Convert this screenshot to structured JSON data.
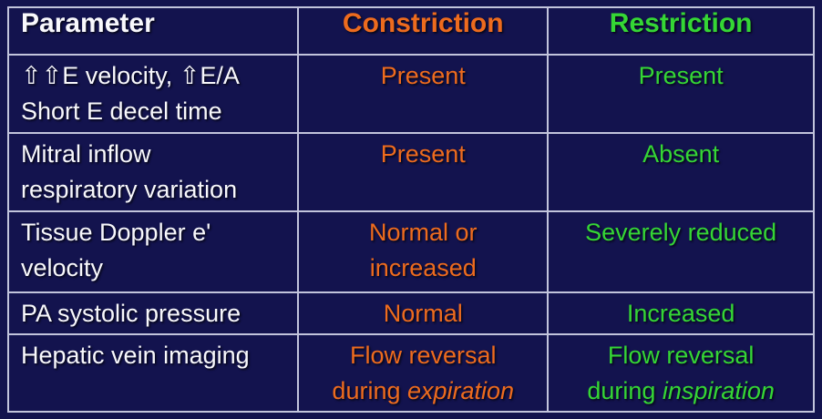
{
  "slide": {
    "colors": {
      "background": "#13134E",
      "grid": "#C2C4DC",
      "parameter_text": "#F8F8FC",
      "constriction_text": "#ED6B1E",
      "restriction_text": "#35D635"
    },
    "table": {
      "headers": [
        {
          "id": "parameter",
          "label": "Parameter"
        },
        {
          "id": "constriction",
          "label": "Constriction"
        },
        {
          "id": "restriction",
          "label": "Restriction"
        }
      ],
      "rows": [
        {
          "parameter": {
            "lines": [
              [
                {
                  "t": "⇧⇧E velocity, ⇧E/A"
                }
              ],
              [
                {
                  "t": "Short E decel time"
                }
              ]
            ]
          },
          "constriction": {
            "lines": [
              [
                {
                  "t": "Present"
                }
              ]
            ]
          },
          "restriction": {
            "lines": [
              [
                {
                  "t": "Present"
                }
              ]
            ]
          }
        },
        {
          "parameter": {
            "lines": [
              [
                {
                  "t": "Mitral inflow"
                }
              ],
              [
                {
                  "t": "respiratory variation"
                }
              ]
            ]
          },
          "constriction": {
            "lines": [
              [
                {
                  "t": "Present"
                }
              ]
            ]
          },
          "restriction": {
            "lines": [
              [
                {
                  "t": "Absent"
                }
              ]
            ]
          }
        },
        {
          "parameter": {
            "lines": [
              [
                {
                  "t": "Tissue Doppler e'"
                }
              ],
              [
                {
                  "t": "velocity"
                }
              ]
            ]
          },
          "constriction": {
            "lines": [
              [
                {
                  "t": "Normal or"
                }
              ],
              [
                {
                  "t": "increased"
                }
              ]
            ]
          },
          "restriction": {
            "lines": [
              [
                {
                  "t": "Severely reduced"
                }
              ]
            ]
          }
        },
        {
          "parameter": {
            "lines": [
              [
                {
                  "t": "PA systolic pressure"
                }
              ]
            ]
          },
          "constriction": {
            "lines": [
              [
                {
                  "t": "Normal"
                }
              ]
            ]
          },
          "restriction": {
            "lines": [
              [
                {
                  "t": "Increased"
                }
              ]
            ]
          }
        },
        {
          "parameter": {
            "lines": [
              [
                {
                  "t": "Hepatic vein imaging"
                }
              ]
            ]
          },
          "constriction": {
            "lines": [
              [
                {
                  "t": "Flow reversal"
                }
              ],
              [
                {
                  "t": "during "
                },
                {
                  "t": "expiration",
                  "i": true
                }
              ]
            ]
          },
          "restriction": {
            "lines": [
              [
                {
                  "t": "Flow reversal"
                }
              ],
              [
                {
                  "t": "during "
                },
                {
                  "t": "inspiration",
                  "i": true
                }
              ]
            ]
          }
        }
      ]
    }
  }
}
